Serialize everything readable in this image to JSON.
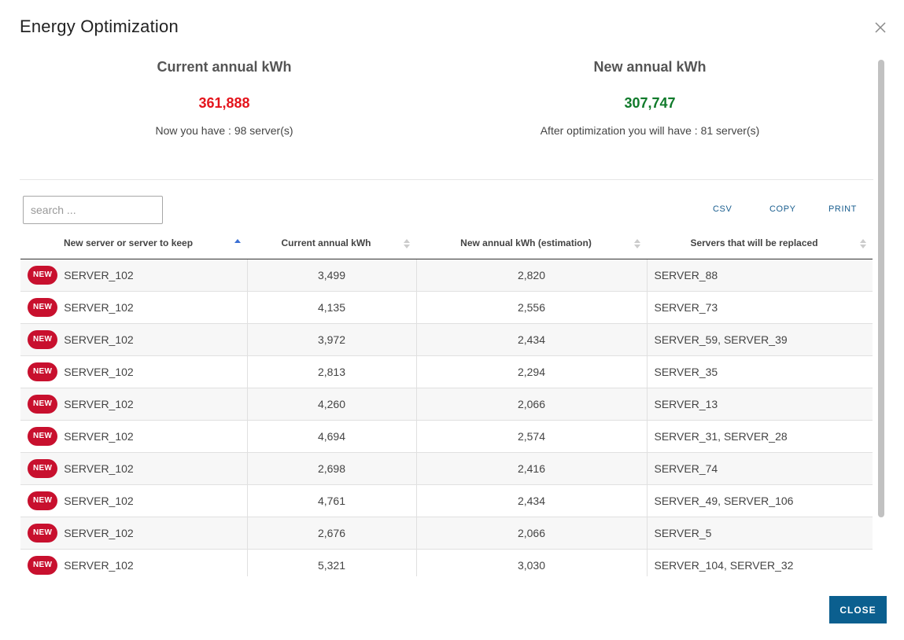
{
  "modal": {
    "title": "Energy Optimization",
    "close_button_label": "CLOSE"
  },
  "summary": {
    "current": {
      "heading": "Current annual kWh",
      "value": "361,888",
      "value_color": "#e4141c",
      "note": "Now you have : 98 server(s)"
    },
    "new": {
      "heading": "New annual kWh",
      "value": "307,747",
      "value_color": "#107a2b",
      "note": "After optimization you will have : 81 server(s)"
    }
  },
  "search": {
    "placeholder": "search ...",
    "value": ""
  },
  "toolbar": {
    "csv_label": "CSV",
    "copy_label": "COPY",
    "print_label": "PRINT"
  },
  "table": {
    "columns": [
      {
        "label": "New server or server to keep",
        "sort": "ascending"
      },
      {
        "label": "Current annual kWh",
        "sort": "none"
      },
      {
        "label": "New annual kWh (estimation)",
        "sort": "none"
      },
      {
        "label": "Servers that will be replaced",
        "sort": "none"
      }
    ],
    "badge_label": "NEW",
    "badge_color": "#c8102e",
    "rows": [
      {
        "server": "SERVER_102",
        "current": "3,499",
        "new": "2,820",
        "replaced": "SERVER_88"
      },
      {
        "server": "SERVER_102",
        "current": "4,135",
        "new": "2,556",
        "replaced": "SERVER_73"
      },
      {
        "server": "SERVER_102",
        "current": "3,972",
        "new": "2,434",
        "replaced": "SERVER_59, SERVER_39"
      },
      {
        "server": "SERVER_102",
        "current": "2,813",
        "new": "2,294",
        "replaced": "SERVER_35"
      },
      {
        "server": "SERVER_102",
        "current": "4,260",
        "new": "2,066",
        "replaced": "SERVER_13"
      },
      {
        "server": "SERVER_102",
        "current": "4,694",
        "new": "2,574",
        "replaced": "SERVER_31, SERVER_28"
      },
      {
        "server": "SERVER_102",
        "current": "2,698",
        "new": "2,416",
        "replaced": "SERVER_74"
      },
      {
        "server": "SERVER_102",
        "current": "4,761",
        "new": "2,434",
        "replaced": "SERVER_49, SERVER_106"
      },
      {
        "server": "SERVER_102",
        "current": "2,676",
        "new": "2,066",
        "replaced": "SERVER_5"
      },
      {
        "server": "SERVER_102",
        "current": "5,321",
        "new": "3,030",
        "replaced": "SERVER_104, SERVER_32"
      }
    ]
  },
  "colors": {
    "primary_button": "#0b5f8f",
    "link": "#1a5e8f"
  }
}
